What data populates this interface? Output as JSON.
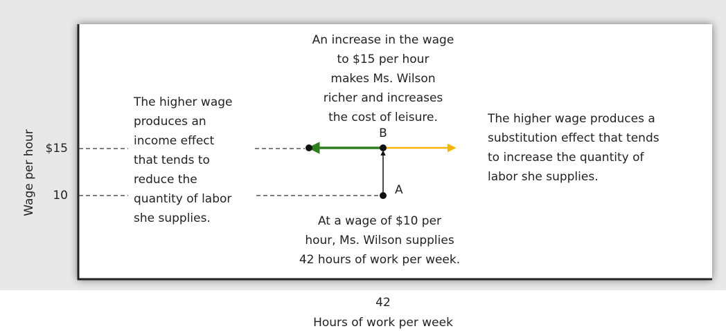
{
  "y_axis": {
    "label": "Wage per hour",
    "ticks": [
      "$15",
      "10"
    ]
  },
  "x_axis": {
    "label": "Hours of work per week",
    "ticks": [
      "42"
    ]
  },
  "annotations": {
    "top": [
      "An increase in the wage",
      "to $15 per hour",
      "makes Ms. Wilson",
      "richer and increases",
      "the cost of leisure."
    ],
    "left": [
      "The higher wage",
      "produces an",
      "income effect",
      "that tends to",
      "reduce the",
      "quantity of labor",
      "she supplies."
    ],
    "right": [
      "The higher wage produces a",
      "substitution effect that tends",
      "to increase the quantity of",
      "labor she supplies."
    ],
    "bottom": [
      "At a wage of $10 per",
      "hour, Ms. Wilson supplies",
      "42 hours of work per week."
    ]
  },
  "points": {
    "a": "A",
    "b": "B"
  }
}
